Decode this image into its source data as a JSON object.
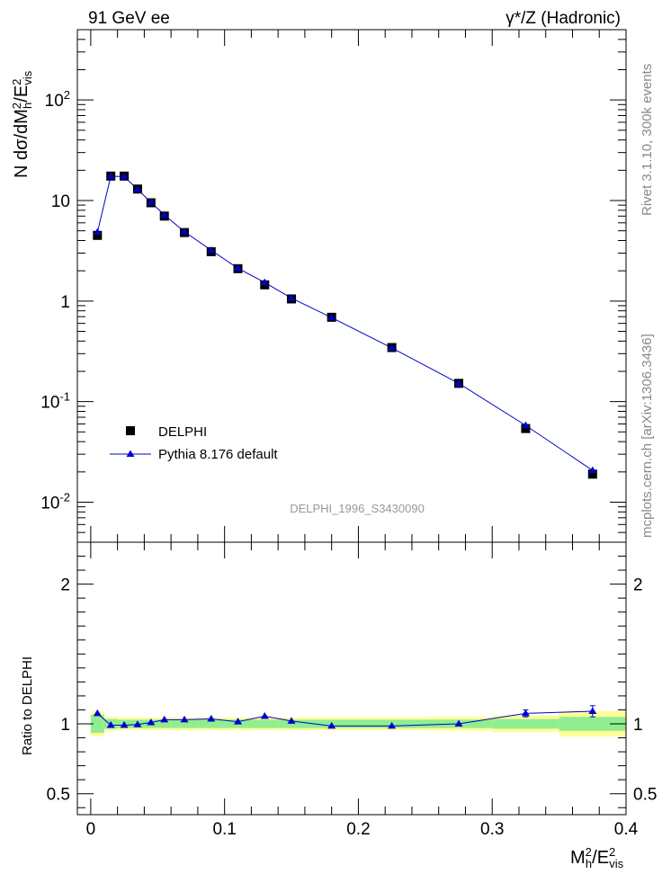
{
  "header": {
    "left_label": "91 GeV ee",
    "right_label": "γ*/Z (Hadronic)"
  },
  "side_labels": {
    "rivet": "Rivet 3.1.10,  300k events",
    "mcplots": "mcplots.cern.ch [arXiv:1306.3436]"
  },
  "colors": {
    "data_marker": "#000000",
    "mc_line": "#0000cc",
    "band_inner": "#90ee90",
    "band_outer": "#ffff99"
  },
  "chart_data": [
    {
      "type": "scatter",
      "panel": "main",
      "title": "DELPHI_1996_S3430090",
      "ylabel": "N dσ/dM_h²/E_vis²",
      "xlim": [
        -0.01,
        0.4
      ],
      "ylim": [
        0.004,
        500
      ],
      "yscale": "log",
      "ytick_labels": [
        "10^-2",
        "10^-1",
        "1",
        "10",
        "10^2"
      ],
      "ytick_values": [
        0.01,
        0.1,
        1,
        10,
        100
      ],
      "legend_position": "lower-left",
      "series": [
        {
          "name": "DELPHI",
          "marker": "square",
          "x": [
            0.005,
            0.015,
            0.025,
            0.035,
            0.045,
            0.055,
            0.07,
            0.09,
            0.11,
            0.13,
            0.15,
            0.18,
            0.225,
            0.275,
            0.325,
            0.375
          ],
          "y": [
            4.5,
            17.5,
            17.5,
            13.0,
            9.5,
            7.0,
            4.8,
            3.1,
            2.1,
            1.45,
            1.05,
            0.69,
            0.345,
            0.152,
            0.054,
            0.019
          ]
        },
        {
          "name": "Pythia 8.176 default",
          "marker": "triangle",
          "x": [
            0.005,
            0.015,
            0.025,
            0.035,
            0.045,
            0.055,
            0.07,
            0.09,
            0.11,
            0.13,
            0.15,
            0.18,
            0.225,
            0.275,
            0.325,
            0.375
          ],
          "y": [
            4.85,
            17.4,
            17.3,
            12.9,
            9.6,
            7.2,
            4.9,
            3.2,
            2.12,
            1.53,
            1.07,
            0.685,
            0.342,
            0.152,
            0.058,
            0.0207
          ]
        }
      ]
    },
    {
      "type": "line",
      "panel": "ratio",
      "ylabel": "Ratio to DELPHI",
      "xlabel": "M_h²/E_vis²",
      "xlim": [
        -0.01,
        0.4
      ],
      "ylim": [
        0.35,
        2.3
      ],
      "xtick_labels": [
        "0",
        "0.1",
        "0.2",
        "0.3",
        "0.4"
      ],
      "xtick_values": [
        0,
        0.1,
        0.2,
        0.3,
        0.4
      ],
      "ytick_labels": [
        "0.5",
        "1",
        "2"
      ],
      "ytick_values": [
        0.5,
        1,
        2
      ],
      "bands": {
        "bin_edges": [
          0,
          0.01,
          0.02,
          0.03,
          0.04,
          0.05,
          0.06,
          0.08,
          0.1,
          0.12,
          0.14,
          0.16,
          0.2,
          0.25,
          0.3,
          0.35,
          0.4
        ],
        "inner": [
          0.065,
          0.035,
          0.03,
          0.03,
          0.03,
          0.03,
          0.03,
          0.03,
          0.03,
          0.03,
          0.03,
          0.03,
          0.03,
          0.03,
          0.035,
          0.05
        ],
        "outer": [
          0.09,
          0.05,
          0.045,
          0.045,
          0.045,
          0.045,
          0.045,
          0.045,
          0.045,
          0.045,
          0.045,
          0.045,
          0.045,
          0.05,
          0.06,
          0.09
        ]
      },
      "series": [
        {
          "name": "Pythia 8.176 default",
          "x": [
            0.005,
            0.015,
            0.025,
            0.035,
            0.045,
            0.055,
            0.07,
            0.09,
            0.11,
            0.13,
            0.15,
            0.18,
            0.225,
            0.275,
            0.325,
            0.375
          ],
          "y": [
            1.075,
            0.99,
            0.99,
            0.995,
            1.01,
            1.03,
            1.03,
            1.035,
            1.015,
            1.055,
            1.02,
            0.985,
            0.985,
            1.0,
            1.075,
            1.09
          ],
          "yerr": [
            0,
            0,
            0,
            0,
            0,
            0,
            0,
            0,
            0,
            0,
            0,
            0,
            0,
            0,
            0.025,
            0.04
          ]
        }
      ]
    }
  ]
}
